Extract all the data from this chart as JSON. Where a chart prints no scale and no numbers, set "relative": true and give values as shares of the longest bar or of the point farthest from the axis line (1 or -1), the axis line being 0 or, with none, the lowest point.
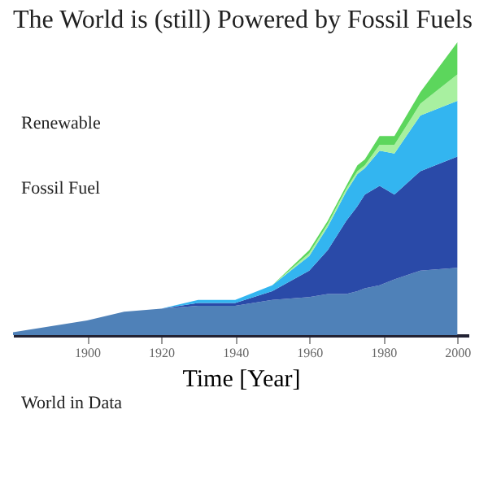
{
  "chart_data": {
    "type": "area",
    "title": "The World is (still) Powered by Fossil Fuels",
    "xlabel": "Time [Year]",
    "relative": true,
    "stacked": true,
    "tick_labels": "x",
    "legend": false,
    "grid": false,
    "annotations": [
      "Renewable",
      "Fossil Fuel",
      "World in Data"
    ],
    "x": [
      1880,
      1890,
      1900,
      1910,
      1920,
      1930,
      1940,
      1950,
      1960,
      1965,
      1970,
      1973,
      1975,
      1979,
      1983,
      1990,
      2000
    ],
    "xlim": [
      1880,
      2003
    ],
    "xticks": [
      1900,
      1920,
      1940,
      1960,
      1980,
      2000
    ],
    "series": [
      {
        "color": "#4f81b8",
        "values": [
          0.01,
          0.03,
          0.05,
          0.08,
          0.09,
          0.1,
          0.1,
          0.12,
          0.13,
          0.14,
          0.14,
          0.15,
          0.16,
          0.17,
          0.19,
          0.22,
          0.23
        ]
      },
      {
        "color": "#2a4aa8",
        "values": [
          0,
          0,
          0,
          0,
          0,
          0.01,
          0.01,
          0.03,
          0.09,
          0.15,
          0.25,
          0.29,
          0.32,
          0.34,
          0.29,
          0.34,
          0.38
        ]
      },
      {
        "color": "#33b5f0",
        "values": [
          0,
          0,
          0,
          0,
          0,
          0.01,
          0.01,
          0.02,
          0.05,
          0.08,
          0.1,
          0.11,
          0.09,
          0.12,
          0.14,
          0.19,
          0.19
        ]
      },
      {
        "color": "#a8f0a0",
        "values": [
          0,
          0,
          0,
          0,
          0,
          0,
          0,
          0,
          0.01,
          0.01,
          0.01,
          0.01,
          0.01,
          0.02,
          0.03,
          0.04,
          0.09
        ]
      },
      {
        "color": "#5cd65c",
        "values": [
          0,
          0,
          0,
          0,
          0,
          0,
          0,
          0,
          0.01,
          0.01,
          0.01,
          0.02,
          0.02,
          0.03,
          0.03,
          0.04,
          0.11
        ]
      }
    ]
  }
}
